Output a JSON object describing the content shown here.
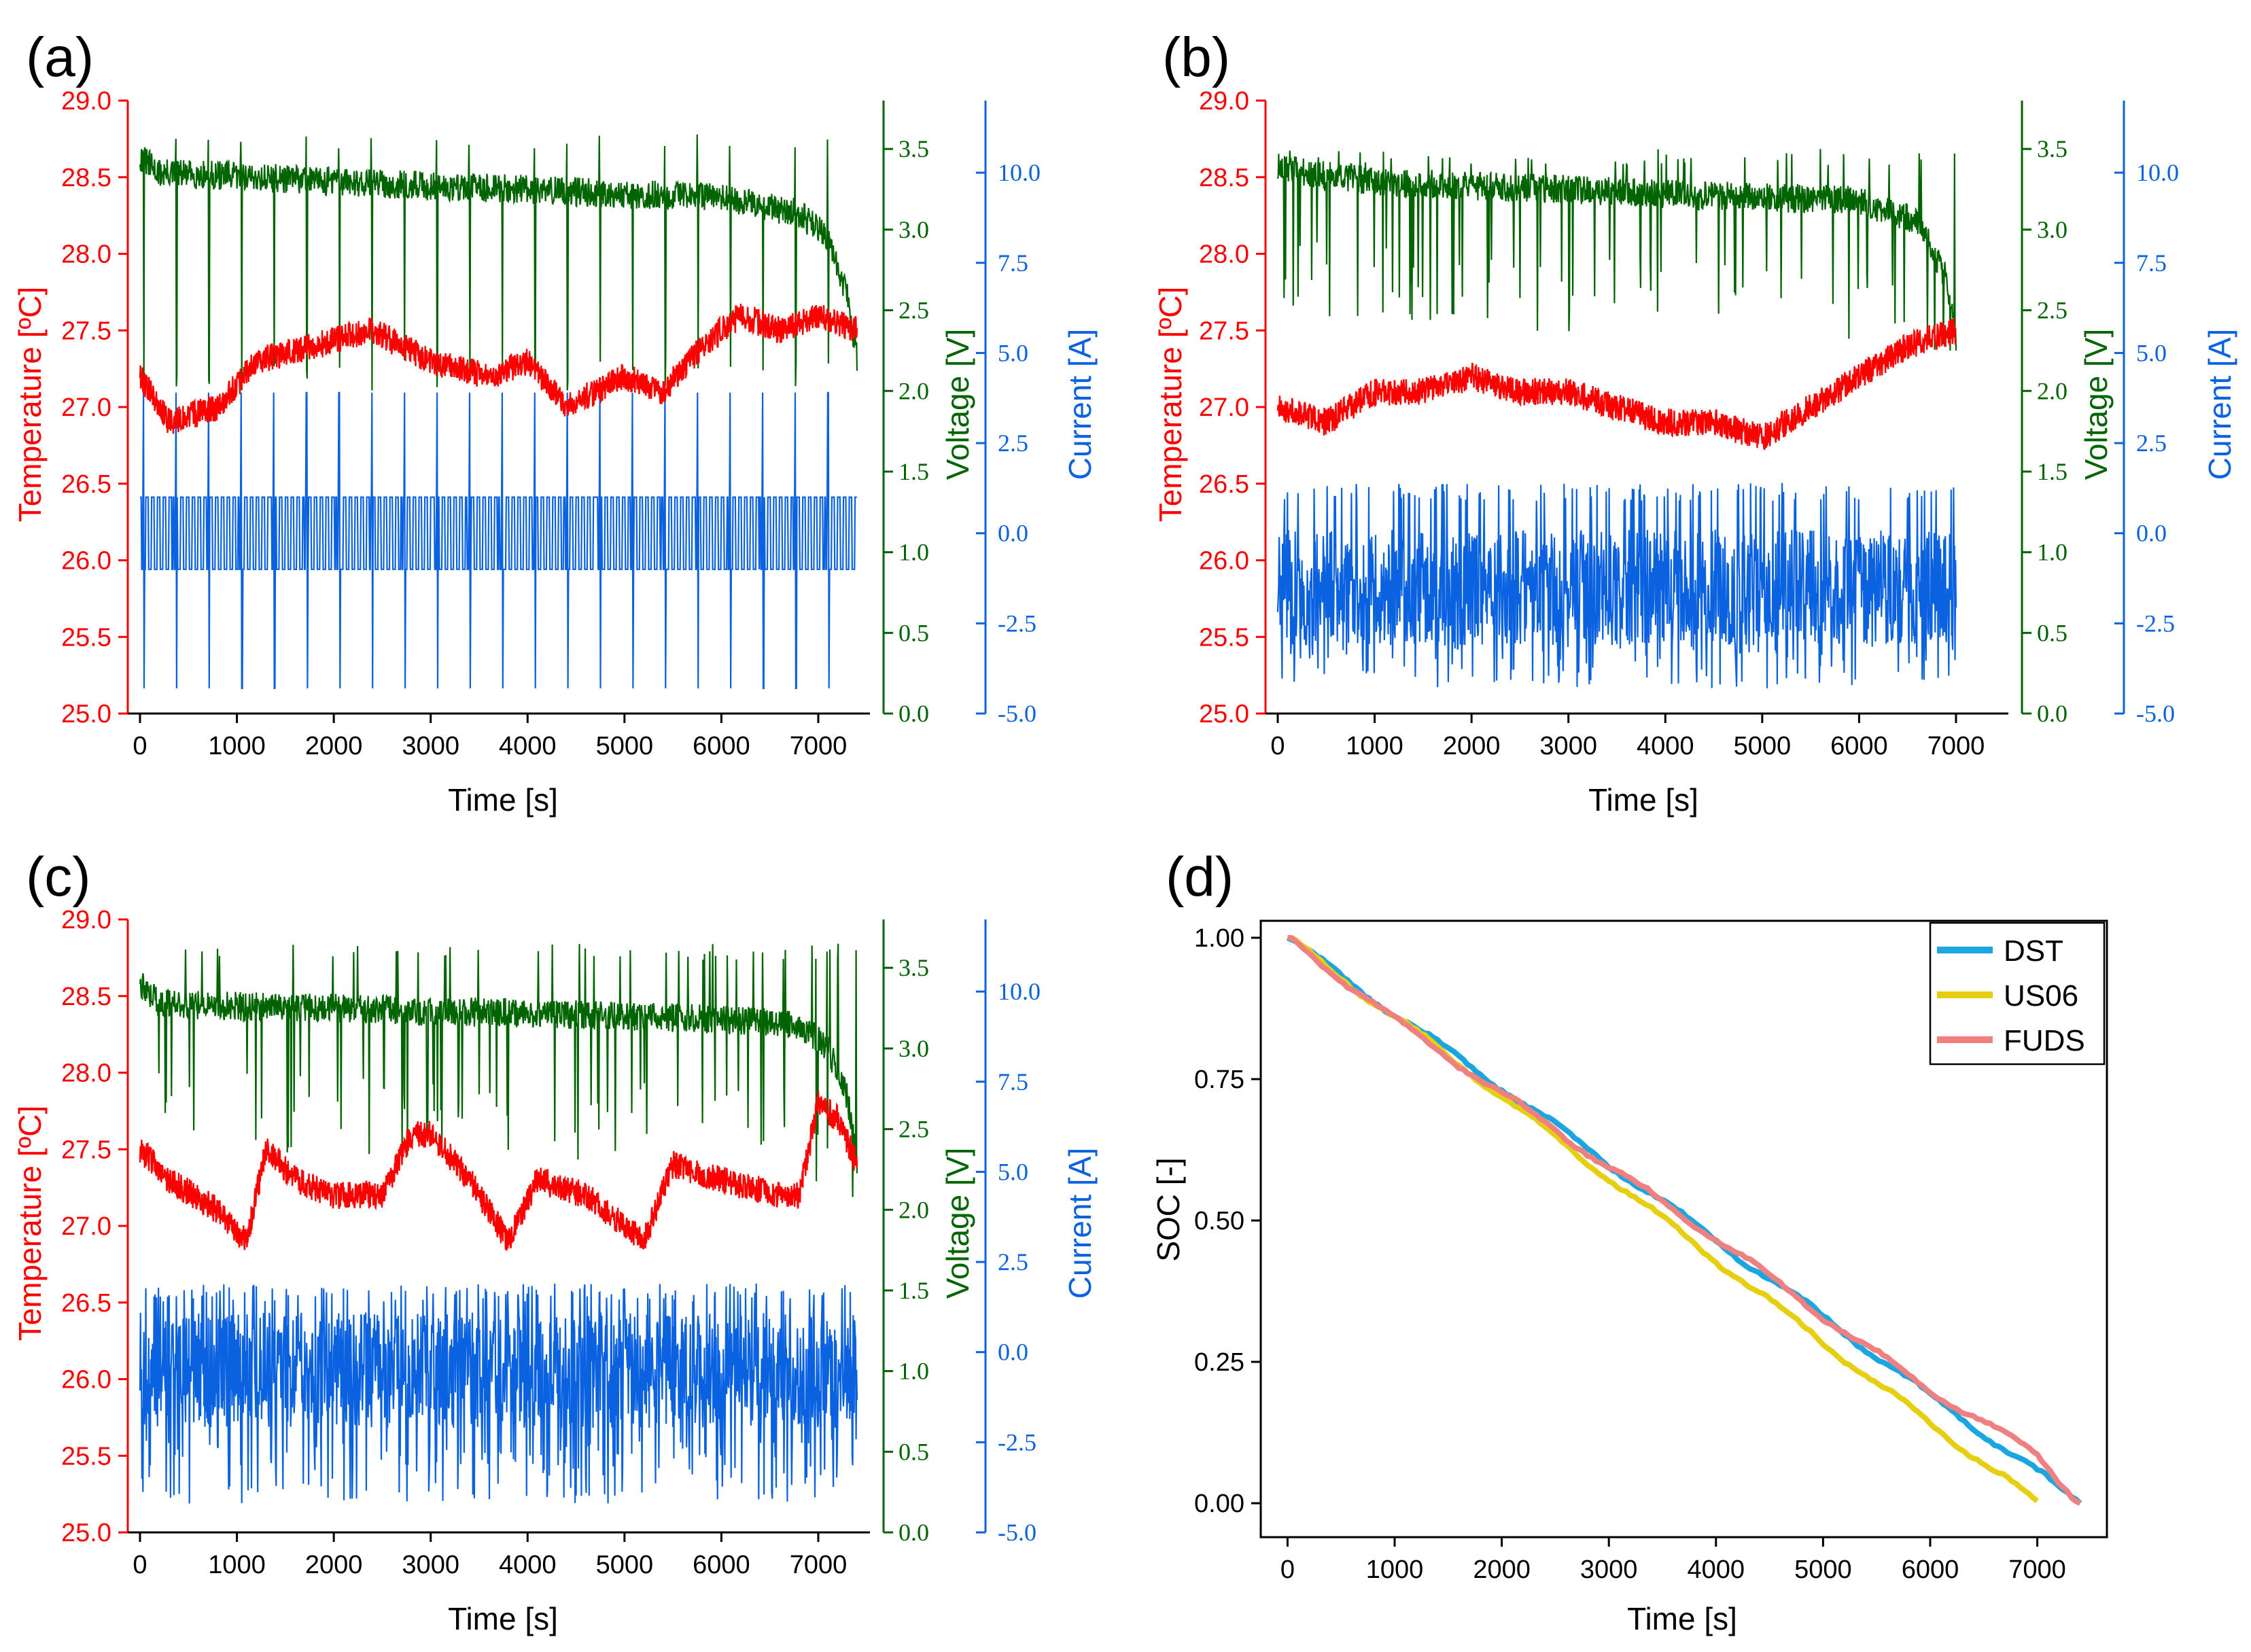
{
  "colors": {
    "temperature": "#ff0000",
    "voltage": "#006400",
    "current": "#0a62e0",
    "axis": "#000000",
    "dst": "#1ca6e0",
    "us06": "#e6cf10",
    "fuds": "#f08080"
  },
  "chart_data": [
    {
      "panel": "(a)",
      "type": "line",
      "profile": "DST",
      "xlabel": "Time [s]",
      "xlim": [
        0,
        7400
      ],
      "x_ticks": [
        "0",
        "1000",
        "2000",
        "3000",
        "4000",
        "5000",
        "6000",
        "7000"
      ],
      "temperature_axis": {
        "label": "Temperature [ºC]",
        "ylim": [
          25.0,
          29.0
        ],
        "ticks": [
          "25.0",
          "25.5",
          "26.0",
          "26.5",
          "27.0",
          "27.5",
          "28.0",
          "28.5",
          "29.0"
        ]
      },
      "voltage_axis": {
        "label": "Voltage [V]",
        "ylim": [
          0.0,
          3.8
        ],
        "ticks": [
          "0.0",
          "0.5",
          "1.0",
          "1.5",
          "2.0",
          "2.5",
          "3.0",
          "3.5"
        ]
      },
      "current_axis": {
        "label": "Current [A]",
        "ylim": [
          -5.0,
          12.0
        ],
        "ticks": [
          "-5.0",
          "-2.5",
          "0.0",
          "2.5",
          "5.0",
          "7.5",
          "10.0"
        ]
      },
      "series": [
        {
          "name": "Temperature",
          "x": [
            0,
            300,
            800,
            1200,
            1800,
            2400,
            3000,
            3600,
            4000,
            4400,
            5000,
            5400,
            5800,
            6200,
            6600,
            7000,
            7400
          ],
          "values": [
            27.2,
            26.9,
            27.0,
            27.3,
            27.4,
            27.5,
            27.3,
            27.2,
            27.3,
            27.0,
            27.2,
            27.1,
            27.4,
            27.6,
            27.5,
            27.6,
            27.5
          ]
        },
        {
          "name": "Voltage",
          "x": [
            0,
            200,
            1000,
            2000,
            3000,
            4000,
            5000,
            6000,
            6800,
            7100,
            7300,
            7400
          ],
          "values": [
            3.45,
            3.35,
            3.33,
            3.3,
            3.27,
            3.25,
            3.22,
            3.2,
            3.1,
            2.95,
            2.6,
            2.2
          ],
          "min_spike": 2.0,
          "max_spike": 3.6
        },
        {
          "name": "Current",
          "baseline": 0.0,
          "levels": [
            1.0,
            -1.0,
            3.9,
            -4.3
          ],
          "cycles": 22
        }
      ]
    },
    {
      "panel": "(b)",
      "type": "line",
      "profile": "US06",
      "xlabel": "Time [s]",
      "xlim": [
        0,
        7400
      ],
      "x_ticks": [
        "0",
        "1000",
        "2000",
        "3000",
        "4000",
        "5000",
        "6000",
        "7000"
      ],
      "temperature_axis": {
        "label": "Temperature [ºC]",
        "ylim": [
          25.0,
          29.0
        ],
        "ticks": [
          "25.0",
          "25.5",
          "26.0",
          "26.5",
          "27.0",
          "27.5",
          "28.0",
          "28.5",
          "29.0"
        ]
      },
      "voltage_axis": {
        "label": "Voltage [V]",
        "ylim": [
          0.0,
          3.8
        ],
        "ticks": [
          "0.0",
          "0.5",
          "1.0",
          "1.5",
          "2.0",
          "2.5",
          "3.0",
          "3.5"
        ]
      },
      "current_axis": {
        "label": "Current [A]",
        "ylim": [
          -5.0,
          12.0
        ],
        "ticks": [
          "-5.0",
          "-2.5",
          "0.0",
          "2.5",
          "5.0",
          "7.5",
          "10.0"
        ]
      },
      "series": [
        {
          "name": "Temperature",
          "x": [
            0,
            500,
            1000,
            1500,
            2000,
            2500,
            3000,
            3500,
            4000,
            4500,
            5000,
            5500,
            6000,
            6500,
            7000
          ],
          "values": [
            27.0,
            26.9,
            27.1,
            27.1,
            27.2,
            27.1,
            27.1,
            27.0,
            26.9,
            26.9,
            26.8,
            27.0,
            27.2,
            27.4,
            27.5
          ]
        },
        {
          "name": "Voltage",
          "x": [
            0,
            300,
            1000,
            2000,
            3000,
            4000,
            5000,
            6000,
            6600,
            6900,
            7000
          ],
          "values": [
            3.4,
            3.35,
            3.3,
            3.27,
            3.25,
            3.22,
            3.2,
            3.18,
            3.05,
            2.7,
            2.3
          ],
          "min_spike": 2.45,
          "max_spike": 3.5
        },
        {
          "name": "Current",
          "baseline": -1.5,
          "range": [
            -4.3,
            1.4
          ],
          "cycles": 24
        }
      ]
    },
    {
      "panel": "(c)",
      "type": "line",
      "profile": "FUDS",
      "xlabel": "Time [s]",
      "xlim": [
        0,
        7400
      ],
      "x_ticks": [
        "0",
        "1000",
        "2000",
        "3000",
        "4000",
        "5000",
        "6000",
        "7000"
      ],
      "temperature_axis": {
        "label": "Temperature [ºC]",
        "ylim": [
          25.0,
          29.0
        ],
        "ticks": [
          "25.0",
          "25.5",
          "26.0",
          "26.5",
          "27.0",
          "27.5",
          "28.0",
          "28.5",
          "29.0"
        ]
      },
      "voltage_axis": {
        "label": "Voltage [V]",
        "ylim": [
          0.0,
          3.8
        ],
        "ticks": [
          "0.0",
          "0.5",
          "1.0",
          "1.5",
          "2.0",
          "2.5",
          "3.0",
          "3.5"
        ]
      },
      "current_axis": {
        "label": "Current [A]",
        "ylim": [
          -5.0,
          12.0
        ],
        "ticks": [
          "-5.0",
          "-2.5",
          "0.0",
          "2.5",
          "5.0",
          "7.5",
          "10.0"
        ]
      },
      "series": [
        {
          "name": "Temperature",
          "x": [
            0,
            300,
            800,
            1100,
            1300,
            1600,
            2000,
            2500,
            2800,
            3000,
            3400,
            3800,
            4100,
            4600,
            5200,
            5500,
            6000,
            6600,
            6800,
            7000,
            7200,
            7400
          ],
          "values": [
            27.5,
            27.3,
            27.1,
            26.9,
            27.5,
            27.3,
            27.2,
            27.2,
            27.6,
            27.6,
            27.3,
            26.9,
            27.3,
            27.2,
            26.9,
            27.4,
            27.3,
            27.2,
            27.2,
            27.8,
            27.7,
            27.4
          ]
        },
        {
          "name": "Voltage",
          "x": [
            0,
            200,
            1000,
            2000,
            3000,
            4000,
            5000,
            6000,
            6800,
            7100,
            7300,
            7400
          ],
          "values": [
            3.4,
            3.28,
            3.26,
            3.25,
            3.23,
            3.22,
            3.2,
            3.18,
            3.15,
            3.0,
            2.7,
            2.3
          ],
          "min_spike": 2.0,
          "max_spike": 3.65
        },
        {
          "name": "Current",
          "baseline": -0.5,
          "range": [
            -4.2,
            1.9
          ],
          "cycles": 5
        }
      ]
    },
    {
      "panel": "(d)",
      "type": "line",
      "xlabel": "Time [s]",
      "ylabel": "SOC [-]",
      "xlim": [
        -250,
        7650
      ],
      "ylim": [
        -0.06,
        1.03
      ],
      "x_ticks": [
        "0",
        "1000",
        "2000",
        "3000",
        "4000",
        "5000",
        "6000",
        "7000"
      ],
      "y_ticks": [
        "0.00",
        "0.25",
        "0.50",
        "0.75",
        "1.00"
      ],
      "legend_position": "top-right",
      "series": [
        {
          "name": "DST",
          "x": [
            0,
            1000,
            2000,
            3000,
            4000,
            5000,
            6000,
            7000,
            7400
          ],
          "values": [
            1.0,
            0.865,
            0.735,
            0.6,
            0.465,
            0.33,
            0.19,
            0.055,
            0.0
          ]
        },
        {
          "name": "US06",
          "x": [
            0,
            1000,
            2000,
            3000,
            4000,
            5000,
            6000,
            6700,
            7000
          ],
          "values": [
            1.0,
            0.86,
            0.72,
            0.575,
            0.43,
            0.285,
            0.14,
            0.045,
            0.0
          ]
        },
        {
          "name": "FUDS",
          "x": [
            0,
            1000,
            2000,
            3000,
            4000,
            5000,
            6000,
            7000,
            7400
          ],
          "values": [
            1.0,
            0.855,
            0.725,
            0.595,
            0.47,
            0.33,
            0.2,
            0.085,
            0.0
          ]
        }
      ]
    }
  ]
}
